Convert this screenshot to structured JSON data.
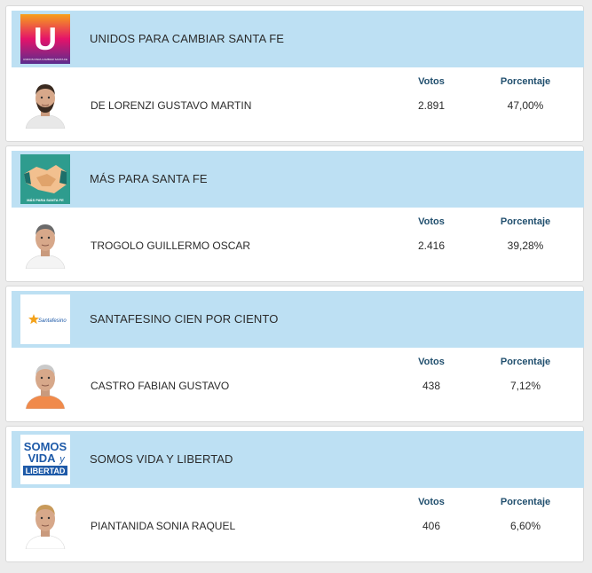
{
  "columns": {
    "votes_label": "Votos",
    "percent_label": "Porcentaje"
  },
  "results": [
    {
      "party": "UNIDOS PARA CAMBIAR SANTA FE",
      "logo": "unidos-logo",
      "logo_text": "U",
      "logo_subtext": "UNIDOS PARA CAMBIAR SANTA FE",
      "candidate": "DE LORENZI GUSTAVO MARTIN",
      "votes": "2.891",
      "percent": "47,00%",
      "photo": {
        "shirt": "#e8e8e8",
        "hair": "#3a2a20",
        "bg": "#ffffff",
        "beard": true
      }
    },
    {
      "party": "MÁS PARA SANTA FE",
      "logo": "handshake-logo",
      "logo_subtext": "MÁS PARA SANTA FE",
      "candidate": "TROGOLO GUILLERMO OSCAR",
      "votes": "2.416",
      "percent": "39,28%",
      "photo": {
        "shirt": "#f4f4f4",
        "hair": "#6a6a6a",
        "bg": "#ffffff",
        "beard": false
      }
    },
    {
      "party": "SANTAFESINO CIEN POR CIENTO",
      "logo": "santafesino-logo",
      "logo_text": "Santafesino",
      "candidate": "CASTRO FABIAN GUSTAVO",
      "votes": "438",
      "percent": "7,12%",
      "photo": {
        "shirt": "#f08a4b",
        "hair": "#c9c9c9",
        "bg": "#ffffff",
        "beard": false
      }
    },
    {
      "party": "SOMOS VIDA Y LIBERTAD",
      "logo": "somos-vida-logo",
      "logo_lines": [
        "SOMOS",
        "VIDA",
        "y",
        "LIBERTAD"
      ],
      "candidate": "PIANTANIDA SONIA RAQUEL",
      "votes": "406",
      "percent": "6,60%",
      "photo": {
        "shirt": "#ffffff",
        "hair": "#c89a5a",
        "bg": "#ffffff",
        "beard": false
      }
    }
  ],
  "colors": {
    "bar": "#bde0f3",
    "header_text": "#214f6e",
    "unidos_gradient": [
      "#f7a11a",
      "#e4136a",
      "#5b2d8e"
    ],
    "handshake_bg": "#2e9c8e",
    "somos_blue": "#1e5aa8"
  }
}
